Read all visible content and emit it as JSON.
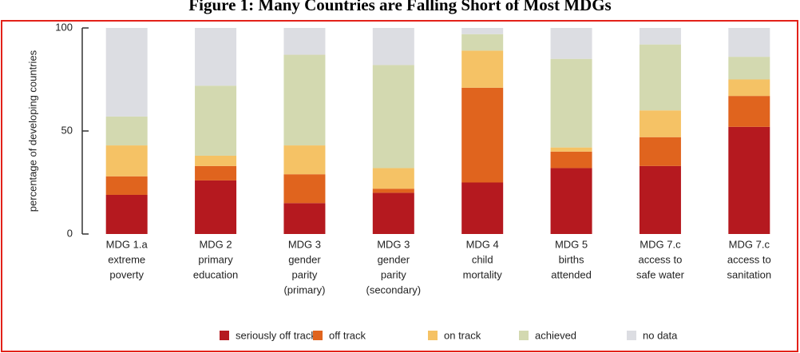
{
  "chart_data": {
    "type": "stacked_bar",
    "title": "Figure 1: Many Countries are Falling Short of Most MDGs",
    "y_label": "percentage of developing countries",
    "categories": [
      [
        "MDG 1.a",
        "extreme",
        "poverty"
      ],
      [
        "MDG 2",
        "primary",
        "education"
      ],
      [
        "MDG 3",
        "gender",
        "parity",
        "(primary)"
      ],
      [
        "MDG 3",
        "gender",
        "parity",
        "(secondary)"
      ],
      [
        "MDG 4",
        "child",
        "mortality"
      ],
      [
        "MDG 5",
        "births",
        "attended"
      ],
      [
        "MDG 7.c",
        "access to",
        "safe water"
      ],
      [
        "MDG 7.c",
        "access to",
        "sanitation"
      ]
    ],
    "series": [
      {
        "name": "seriously off track",
        "color": "#b5191f",
        "values": [
          19,
          26,
          15,
          20,
          25,
          32,
          33,
          52
        ]
      },
      {
        "name": "off track",
        "color": "#e0641e",
        "values": [
          9,
          7,
          14,
          2,
          46,
          8,
          14,
          15
        ]
      },
      {
        "name": "on track",
        "color": "#f5c265",
        "values": [
          15,
          5,
          14,
          10,
          18,
          2,
          13,
          8
        ]
      },
      {
        "name": "achieved",
        "color": "#d3d9b0",
        "values": [
          14,
          34,
          44,
          50,
          8,
          43,
          32,
          11
        ]
      },
      {
        "name": "no data",
        "color": "#dcdde2",
        "values": [
          43,
          28,
          13,
          18,
          3,
          15,
          8,
          14
        ]
      }
    ],
    "ylim": [
      0,
      100
    ],
    "yticks": [
      0,
      50,
      100
    ]
  }
}
